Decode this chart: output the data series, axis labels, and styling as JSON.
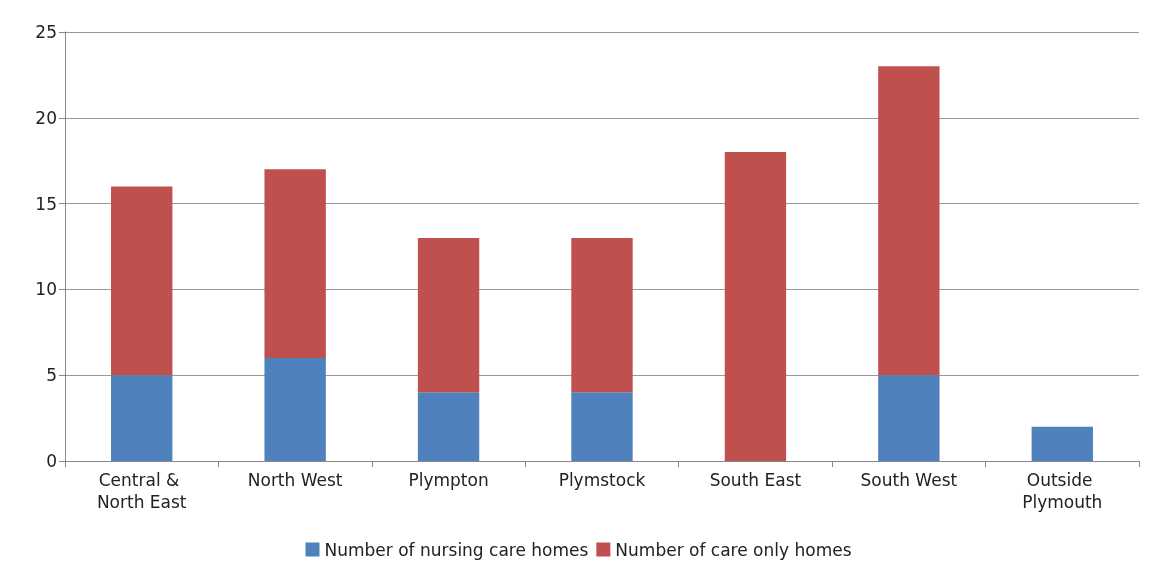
{
  "chart_data": {
    "type": "bar",
    "stacked": true,
    "categories": [
      "Central & North East",
      "North West",
      "Plympton",
      "Plymstock",
      "South East",
      "South West",
      "Outside Plymouth"
    ],
    "series": [
      {
        "name": "Number of nursing care homes",
        "color": "#4f81bd",
        "values": [
          5,
          6,
          4,
          4,
          0,
          5,
          2
        ]
      },
      {
        "name": "Number of care only homes",
        "color": "#c0504d",
        "values": [
          11,
          11,
          9,
          9,
          18,
          18,
          0
        ]
      }
    ],
    "ylim": [
      0,
      25
    ],
    "yticks": [
      0,
      5,
      10,
      15,
      20,
      25
    ],
    "grid": "y",
    "legend": "bottom"
  }
}
